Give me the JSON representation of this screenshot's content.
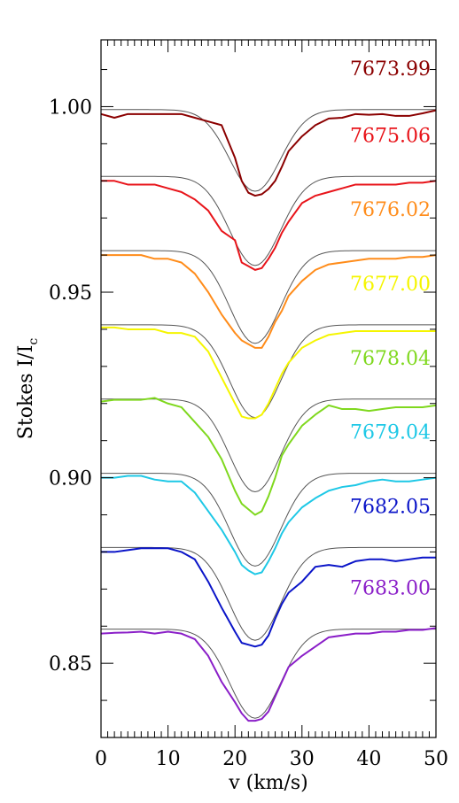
{
  "chart_data": {
    "type": "line",
    "xlabel": "v (km/s)",
    "ylabel": "Stokes I/I",
    "ylabel_sub": "c",
    "xlim": [
      0,
      50
    ],
    "ylim": [
      0.83,
      1.018
    ],
    "xticks": [
      {
        "value": 0,
        "label": "0"
      },
      {
        "value": 10,
        "label": "10"
      },
      {
        "value": 20,
        "label": "20"
      },
      {
        "value": 30,
        "label": "30"
      },
      {
        "value": 40,
        "label": "40"
      },
      {
        "value": 50,
        "label": "50"
      }
    ],
    "yticks": [
      {
        "value": 1.0,
        "label": "1.00"
      },
      {
        "value": 0.95,
        "label": "0.95"
      },
      {
        "value": 0.9,
        "label": "0.90"
      },
      {
        "value": 0.85,
        "label": "0.85"
      }
    ],
    "grid": false,
    "legend": "labels placed right of each profile",
    "model_color": "#555555",
    "x": [
      0,
      2,
      4,
      6,
      8,
      10,
      12,
      14,
      16,
      18,
      20,
      21,
      22,
      23,
      24,
      25,
      26,
      27,
      28,
      30,
      32,
      34,
      36,
      38,
      40,
      42,
      44,
      46,
      48,
      50
    ],
    "series": [
      {
        "name": "7673.99",
        "color": "#8b0000",
        "offset": 0.998,
        "depth": 0.022,
        "obs": [
          0.998,
          0.997,
          0.998,
          0.998,
          0.998,
          0.998,
          0.998,
          0.997,
          0.996,
          0.995,
          0.9862,
          0.98,
          0.9768,
          0.976,
          0.9764,
          0.9778,
          0.98,
          0.9838,
          0.988,
          0.992,
          0.995,
          0.9968,
          0.997,
          0.998,
          0.9978,
          0.998,
          0.9975,
          0.9975,
          0.9982,
          0.999
        ]
      },
      {
        "name": "7675.06",
        "color": "#e8141a",
        "offset": 0.98,
        "depth": 0.024,
        "obs": [
          0.98,
          0.98,
          0.979,
          0.979,
          0.979,
          0.978,
          0.977,
          0.975,
          0.972,
          0.9665,
          0.964,
          0.958,
          0.957,
          0.956,
          0.9565,
          0.959,
          0.962,
          0.966,
          0.969,
          0.974,
          0.976,
          0.977,
          0.978,
          0.979,
          0.979,
          0.979,
          0.979,
          0.9795,
          0.9795,
          0.98
        ]
      },
      {
        "name": "7676.02",
        "color": "#ff8c1a",
        "offset": 0.96,
        "depth": 0.025,
        "obs": [
          0.96,
          0.96,
          0.96,
          0.96,
          0.959,
          0.959,
          0.958,
          0.955,
          0.95,
          0.944,
          0.939,
          0.937,
          0.936,
          0.935,
          0.935,
          0.938,
          0.942,
          0.945,
          0.949,
          0.953,
          0.956,
          0.9575,
          0.958,
          0.9585,
          0.959,
          0.959,
          0.959,
          0.9595,
          0.9595,
          0.96
        ]
      },
      {
        "name": "7677.00",
        "color": "#f5f500",
        "offset": 0.94,
        "depth": 0.025,
        "obs": [
          0.9405,
          0.9405,
          0.94,
          0.94,
          0.94,
          0.939,
          0.939,
          0.938,
          0.934,
          0.927,
          0.92,
          0.9165,
          0.916,
          0.916,
          0.917,
          0.92,
          0.924,
          0.928,
          0.931,
          0.935,
          0.937,
          0.9385,
          0.939,
          0.9395,
          0.9395,
          0.9395,
          0.9395,
          0.9395,
          0.9395,
          0.9395
        ]
      },
      {
        "name": "7678.04",
        "color": "#7fd81e",
        "offset": 0.92,
        "depth": 0.025,
        "obs": [
          0.9205,
          0.921,
          0.921,
          0.921,
          0.9215,
          0.92,
          0.919,
          0.915,
          0.911,
          0.905,
          0.8965,
          0.893,
          0.8915,
          0.89,
          0.891,
          0.895,
          0.9,
          0.906,
          0.909,
          0.914,
          0.917,
          0.9195,
          0.9185,
          0.9185,
          0.918,
          0.9185,
          0.919,
          0.919,
          0.919,
          0.9195
        ]
      },
      {
        "name": "7679.04",
        "color": "#1ec8e6",
        "offset": 0.9,
        "depth": 0.025,
        "obs": [
          0.9,
          0.9,
          0.9005,
          0.9005,
          0.8995,
          0.899,
          0.899,
          0.896,
          0.891,
          0.886,
          0.88,
          0.8765,
          0.875,
          0.874,
          0.8745,
          0.8775,
          0.881,
          0.885,
          0.888,
          0.892,
          0.8945,
          0.8965,
          0.8975,
          0.898,
          0.899,
          0.8995,
          0.899,
          0.899,
          0.8995,
          0.9
        ]
      },
      {
        "name": "7682.05",
        "color": "#0a14c8",
        "offset": 0.88,
        "depth": 0.025,
        "obs": [
          0.88,
          0.88,
          0.8805,
          0.881,
          0.881,
          0.881,
          0.88,
          0.878,
          0.872,
          0.865,
          0.8585,
          0.8555,
          0.855,
          0.8545,
          0.855,
          0.8575,
          0.862,
          0.866,
          0.869,
          0.872,
          0.876,
          0.8765,
          0.876,
          0.8775,
          0.878,
          0.878,
          0.8775,
          0.878,
          0.8785,
          0.8785
        ]
      },
      {
        "name": "7683.00",
        "color": "#8a1ec8",
        "offset": 0.858,
        "depth": 0.024,
        "obs": [
          0.858,
          0.8582,
          0.8583,
          0.8585,
          0.858,
          0.8585,
          0.858,
          0.8565,
          0.852,
          0.845,
          0.8395,
          0.8365,
          0.8345,
          0.8345,
          0.835,
          0.837,
          0.841,
          0.845,
          0.849,
          0.852,
          0.8545,
          0.857,
          0.8575,
          0.858,
          0.858,
          0.8585,
          0.8585,
          0.859,
          0.859,
          0.8595
        ]
      }
    ]
  }
}
